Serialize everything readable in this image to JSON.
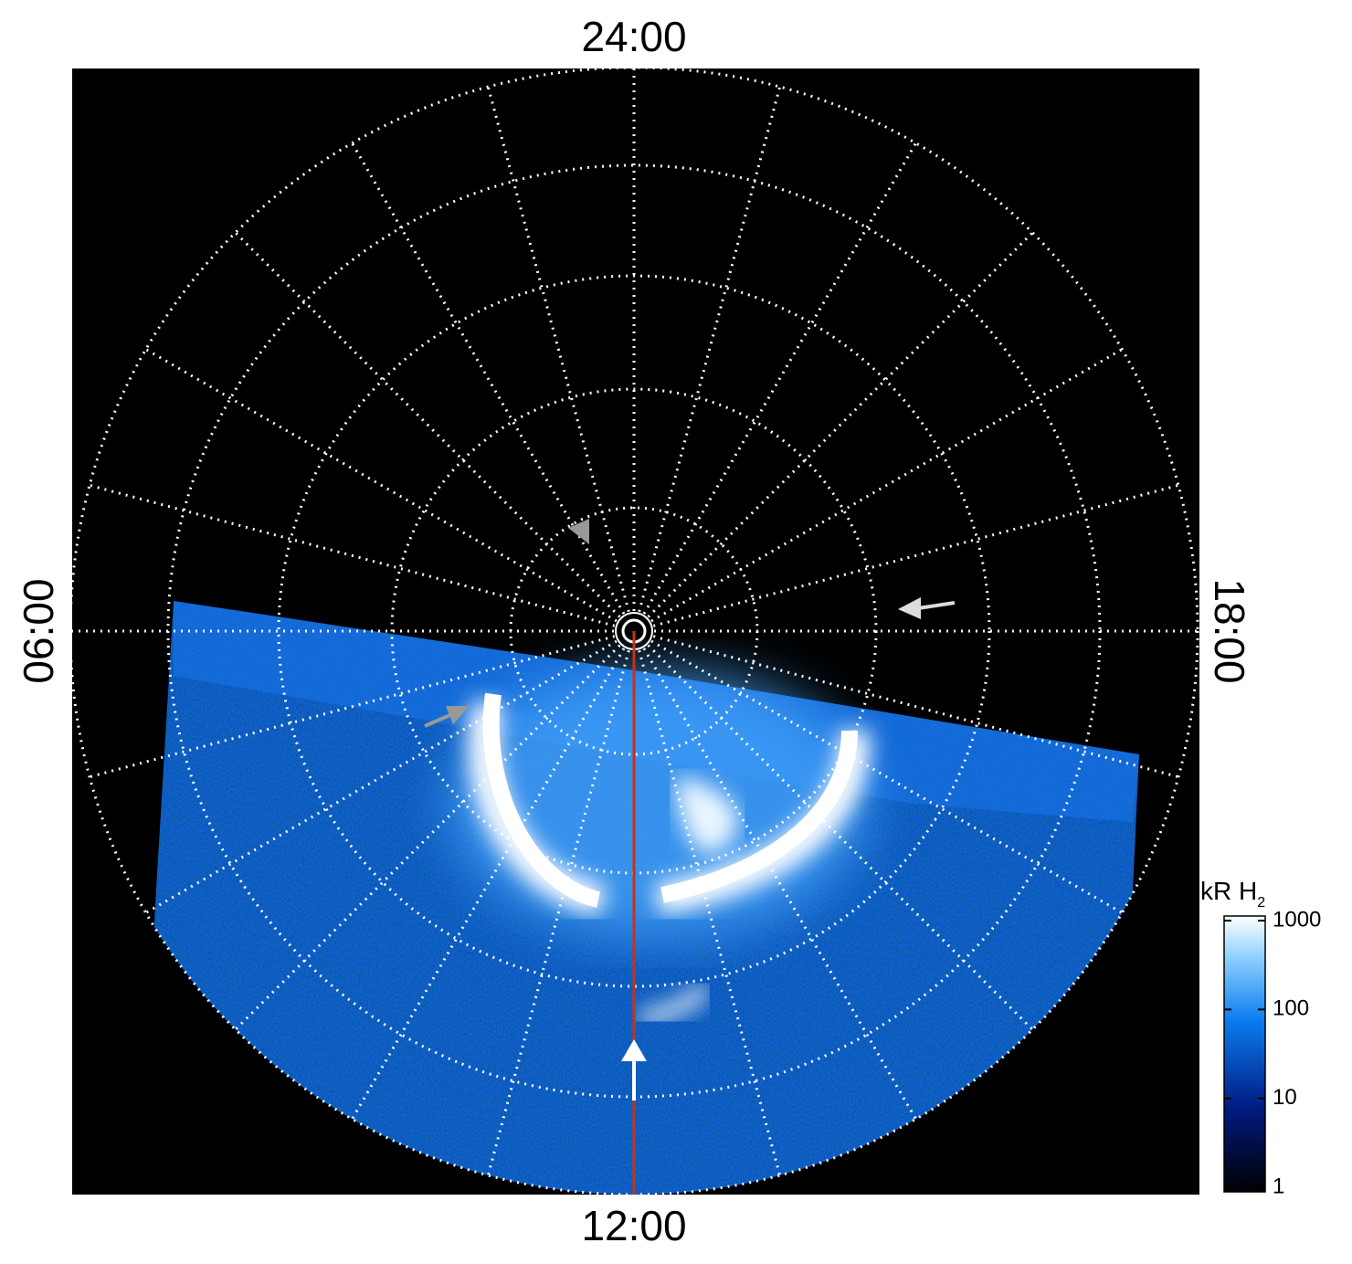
{
  "labels": {
    "top": "24:00",
    "left": "06:00",
    "right": "18:00",
    "bottom": "12:00"
  },
  "colorbar": {
    "title": "kR H",
    "title_sub": "2",
    "scale": "log",
    "lim": [
      1,
      1000
    ],
    "ticks": [
      1,
      10,
      100,
      1000
    ]
  }
}
